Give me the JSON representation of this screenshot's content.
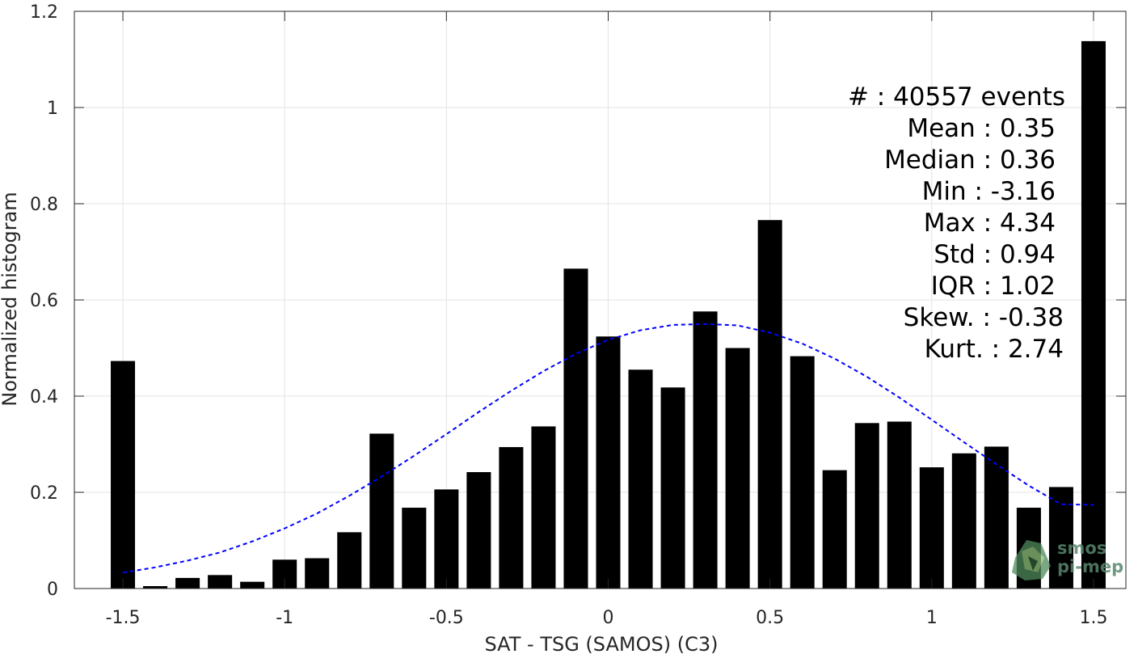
{
  "chart_data": {
    "type": "bar",
    "title": "",
    "xlabel": "SAT - TSG (SAMOS) (C3)",
    "ylabel": "Normalized histogram",
    "xlim": [
      -1.65,
      1.6
    ],
    "ylim": [
      0,
      1.2
    ],
    "xticks": [
      -1.5,
      -1,
      -0.5,
      0,
      0.5,
      1,
      1.5
    ],
    "xtick_labels": [
      "-1.5",
      "-1",
      "-0.5",
      "0",
      "0.5",
      "1",
      "1.5"
    ],
    "yticks": [
      0,
      0.2,
      0.4,
      0.6,
      0.8,
      1,
      1.2
    ],
    "ytick_labels": [
      "0",
      "0.2",
      "0.4",
      "0.6",
      "0.8",
      "1",
      "1.2"
    ],
    "grid": true,
    "bar_color": "#000000",
    "bar_width": 0.075,
    "x": [
      -1.5,
      -1.4,
      -1.3,
      -1.2,
      -1.1,
      -1.0,
      -0.9,
      -0.8,
      -0.7,
      -0.6,
      -0.5,
      -0.4,
      -0.3,
      -0.2,
      -0.1,
      0.0,
      0.1,
      0.2,
      0.3,
      0.4,
      0.5,
      0.6,
      0.7,
      0.8,
      0.9,
      1.0,
      1.1,
      1.2,
      1.3,
      1.4,
      1.5
    ],
    "values": [
      0.473,
      0.005,
      0.022,
      0.028,
      0.014,
      0.06,
      0.063,
      0.117,
      0.322,
      0.168,
      0.206,
      0.242,
      0.294,
      0.337,
      0.665,
      0.524,
      0.455,
      0.418,
      0.576,
      0.5,
      0.766,
      0.483,
      0.246,
      0.344,
      0.347,
      0.252,
      0.281,
      0.295,
      0.168,
      0.211,
      1.138
    ],
    "fit_curve": {
      "color": "#0000ff",
      "style": "dashed",
      "x": [
        -1.5,
        -1.4,
        -1.3,
        -1.2,
        -1.1,
        -1.0,
        -0.9,
        -0.8,
        -0.7,
        -0.6,
        -0.5,
        -0.4,
        -0.3,
        -0.2,
        -0.1,
        0.0,
        0.1,
        0.2,
        0.3,
        0.4,
        0.5,
        0.6,
        0.7,
        0.8,
        0.9,
        1.0,
        1.1,
        1.2,
        1.3,
        1.4,
        1.5
      ],
      "y": [
        0.033,
        0.044,
        0.058,
        0.075,
        0.098,
        0.125,
        0.156,
        0.193,
        0.233,
        0.276,
        0.321,
        0.367,
        0.411,
        0.452,
        0.488,
        0.517,
        0.537,
        0.548,
        0.55,
        0.547,
        0.532,
        0.509,
        0.478,
        0.44,
        0.397,
        0.351,
        0.304,
        0.258,
        0.214,
        0.175,
        0.174
      ]
    }
  },
  "stats": [
    "#  : 40557 events",
    "Mean : 0.35",
    "Median : 0.36",
    "Min : -3.16",
    "Max : 4.34",
    "Std : 0.94",
    "IQR : 1.02",
    "Skew. : -0.38",
    "Kurt. : 2.74"
  ],
  "watermark": {
    "line1": "smos",
    "line2": "pi-mep",
    "color": "#58876d"
  }
}
